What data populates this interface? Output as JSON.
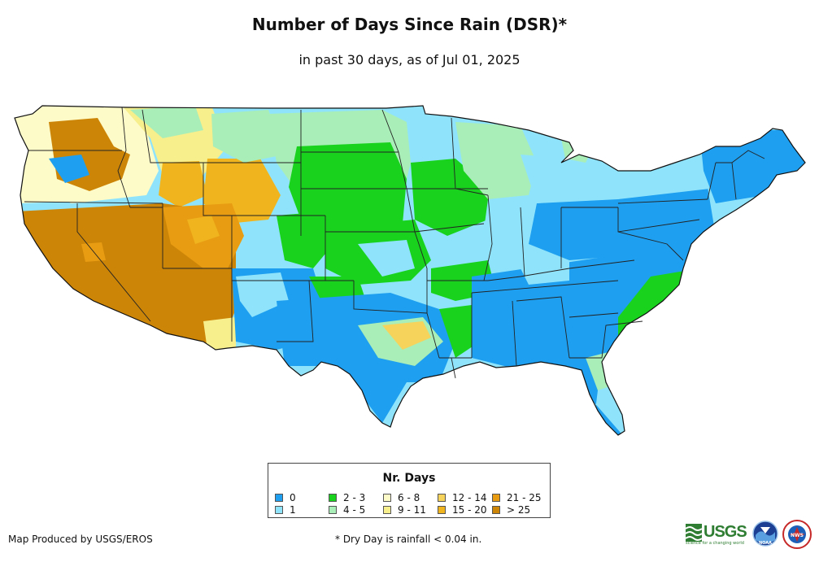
{
  "title": "Number of Days Since Rain (DSR)*",
  "subtitle": "in past 30 days, as of Jul 01, 2025",
  "legend": {
    "title": "Nr. Days",
    "items": [
      {
        "label": "0",
        "color": "#1e9ff0"
      },
      {
        "label": "1",
        "color": "#8fe4fb"
      },
      {
        "label": "2 - 3",
        "color": "#19d21e"
      },
      {
        "label": "4 - 5",
        "color": "#a9eeb8"
      },
      {
        "label": "6 - 8",
        "color": "#fdfbc8"
      },
      {
        "label": "9 - 11",
        "color": "#f6ef8c"
      },
      {
        "label": "12 - 14",
        "color": "#f6d35a"
      },
      {
        "label": "15 - 20",
        "color": "#f0b41f"
      },
      {
        "label": "21 - 25",
        "color": "#e89c12"
      },
      {
        "label": "> 25",
        "color": "#cd8508"
      }
    ]
  },
  "credit": "Map Produced by USGS/EROS",
  "footnote": "* Dry Day is rainfall < 0.04 in.",
  "logos": {
    "usgs": {
      "text": "USGS",
      "tagline": "science for a changing world"
    },
    "noaa": {
      "text": "NOAA"
    },
    "nws": {
      "text": "NWS"
    }
  }
}
